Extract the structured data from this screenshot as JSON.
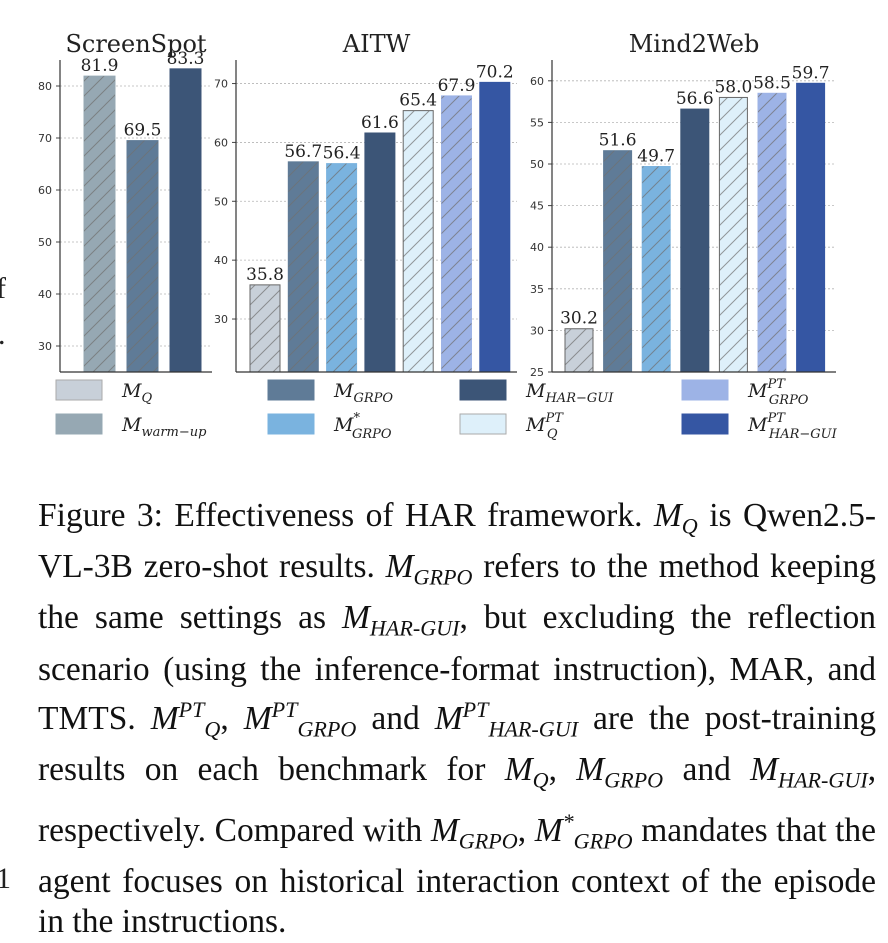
{
  "chart_data": [
    {
      "type": "bar",
      "title": "ScreenSpot",
      "ylim": [
        25,
        85
      ],
      "yticks": [
        30,
        40,
        50,
        60,
        70,
        80
      ],
      "grid": true,
      "series": [
        {
          "key": "warm",
          "value": 81.9
        },
        {
          "key": "grpo",
          "value": 69.5
        },
        {
          "key": "har",
          "value": 83.3
        }
      ]
    },
    {
      "type": "bar",
      "title": "AITW",
      "ylim": [
        21,
        74
      ],
      "yticks": [
        30,
        40,
        50,
        60,
        70
      ],
      "grid": true,
      "series": [
        {
          "key": "q",
          "value": 35.8
        },
        {
          "key": "grpo",
          "value": 56.7
        },
        {
          "key": "grpostar",
          "value": 56.4
        },
        {
          "key": "har",
          "value": 61.6
        },
        {
          "key": "qpt",
          "value": 65.4
        },
        {
          "key": "grpopt",
          "value": 67.9
        },
        {
          "key": "harpt",
          "value": 70.2
        }
      ]
    },
    {
      "type": "bar",
      "title": "Mind2Web",
      "ylim": [
        25,
        62.5
      ],
      "yticks": [
        25,
        30,
        35,
        40,
        45,
        50,
        55,
        60
      ],
      "grid": true,
      "series": [
        {
          "key": "q",
          "value": 30.2
        },
        {
          "key": "grpo",
          "value": 51.6
        },
        {
          "key": "grpostar",
          "value": 49.7
        },
        {
          "key": "har",
          "value": 56.6
        },
        {
          "key": "qpt",
          "value": 58.0
        },
        {
          "key": "grpopt",
          "value": 58.5
        },
        {
          "key": "harpt",
          "value": 59.7
        }
      ]
    }
  ],
  "legend": {
    "placement": "bottom",
    "items": [
      {
        "key": "q",
        "base": "M",
        "sub": "Q",
        "sup": ""
      },
      {
        "key": "warm",
        "base": "M",
        "sub": "warm−up",
        "sup": ""
      },
      {
        "key": "grpo",
        "base": "M",
        "sub": "GRPO",
        "sup": ""
      },
      {
        "key": "grpostar",
        "base": "M",
        "sub": "GRPO",
        "sup": "*"
      },
      {
        "key": "har",
        "base": "M",
        "sub": "HAR−GUI",
        "sup": ""
      },
      {
        "key": "qpt",
        "base": "M",
        "sub": "Q",
        "sup": "PT"
      },
      {
        "key": "grpopt",
        "base": "M",
        "sub": "GRPO",
        "sup": "PT"
      },
      {
        "key": "harpt",
        "base": "M",
        "sub": "HAR−GUI",
        "sup": "PT"
      }
    ]
  },
  "colors": {
    "q": "#c8d0d9",
    "warm": "#96a8b3",
    "grpo": "#5f7b97",
    "grpostar": "#7ab3df",
    "har": "#3c5577",
    "qpt": "#def0fa",
    "grpopt": "#9db3e6",
    "harpt": "#3556a3"
  },
  "hatched": [
    "q",
    "warm",
    "grpo",
    "grpostar",
    "qpt",
    "grpopt"
  ],
  "caption": {
    "p1": "Figure 3: Effectiveness of HAR framework.",
    "p2": "is Qwen2.5-VL-3B zero-shot results.",
    "p3": "refers to the method keeping the same settings as",
    "p4": ", but excluding the reflection scenario (using the inference-format instruction), MAR, and TMTS.",
    "p5": "and",
    "p6": "are the post-training results on each benchmark for",
    "p7": "and",
    "p8": ", respectively. Compared with",
    "p9": "mandates that the agent focuses on historical interaction context of the episode in the instructions.",
    "m": "M",
    "q": "Q",
    "grpo": "GRPO",
    "hargui": "HAR-GUI",
    "pt": "PT",
    "star": "*",
    "comma": ","
  },
  "edge": {
    "f": "f",
    "dot": ".",
    "one": "1"
  }
}
